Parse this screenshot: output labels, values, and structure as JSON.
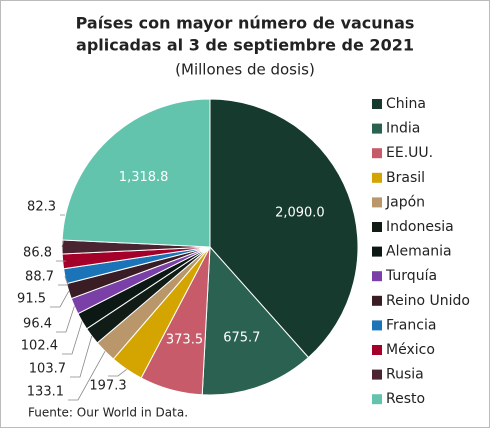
{
  "chart_data": {
    "type": "pie",
    "title": [
      "Países con mayor número de vacunas",
      "aplicadas al 3 de septiembre de 2021"
    ],
    "subtitle": "(Millones de dosis)",
    "source": "Fuente: Our World in Data.",
    "categories": [
      "China",
      "India",
      "EE.UU.",
      "Brasil",
      "Japón",
      "Indonesia",
      "Alemania",
      "Turquía",
      "Reino Unido",
      "Francia",
      "México",
      "Rusia",
      "Resto"
    ],
    "values": [
      2090.0,
      675.7,
      373.5,
      197.3,
      133.1,
      103.7,
      102.4,
      96.4,
      91.5,
      88.7,
      86.8,
      82.3,
      1318.8
    ],
    "value_labels": [
      "2,090.0",
      "675.7",
      "373.5",
      "197.3",
      "133.1",
      "103.7",
      "102.4",
      "96.4",
      "91.5",
      "88.7",
      "86.8",
      "82.3",
      "1,318.8"
    ],
    "colors": [
      "#163a2e",
      "#2a6150",
      "#c75b69",
      "#d4a400",
      "#b9976a",
      "#111c17",
      "#0b1813",
      "#7b3fa8",
      "#3a1d24",
      "#1b74b8",
      "#a5002a",
      "#4a2431",
      "#63c4ad"
    ],
    "legend": "right"
  }
}
